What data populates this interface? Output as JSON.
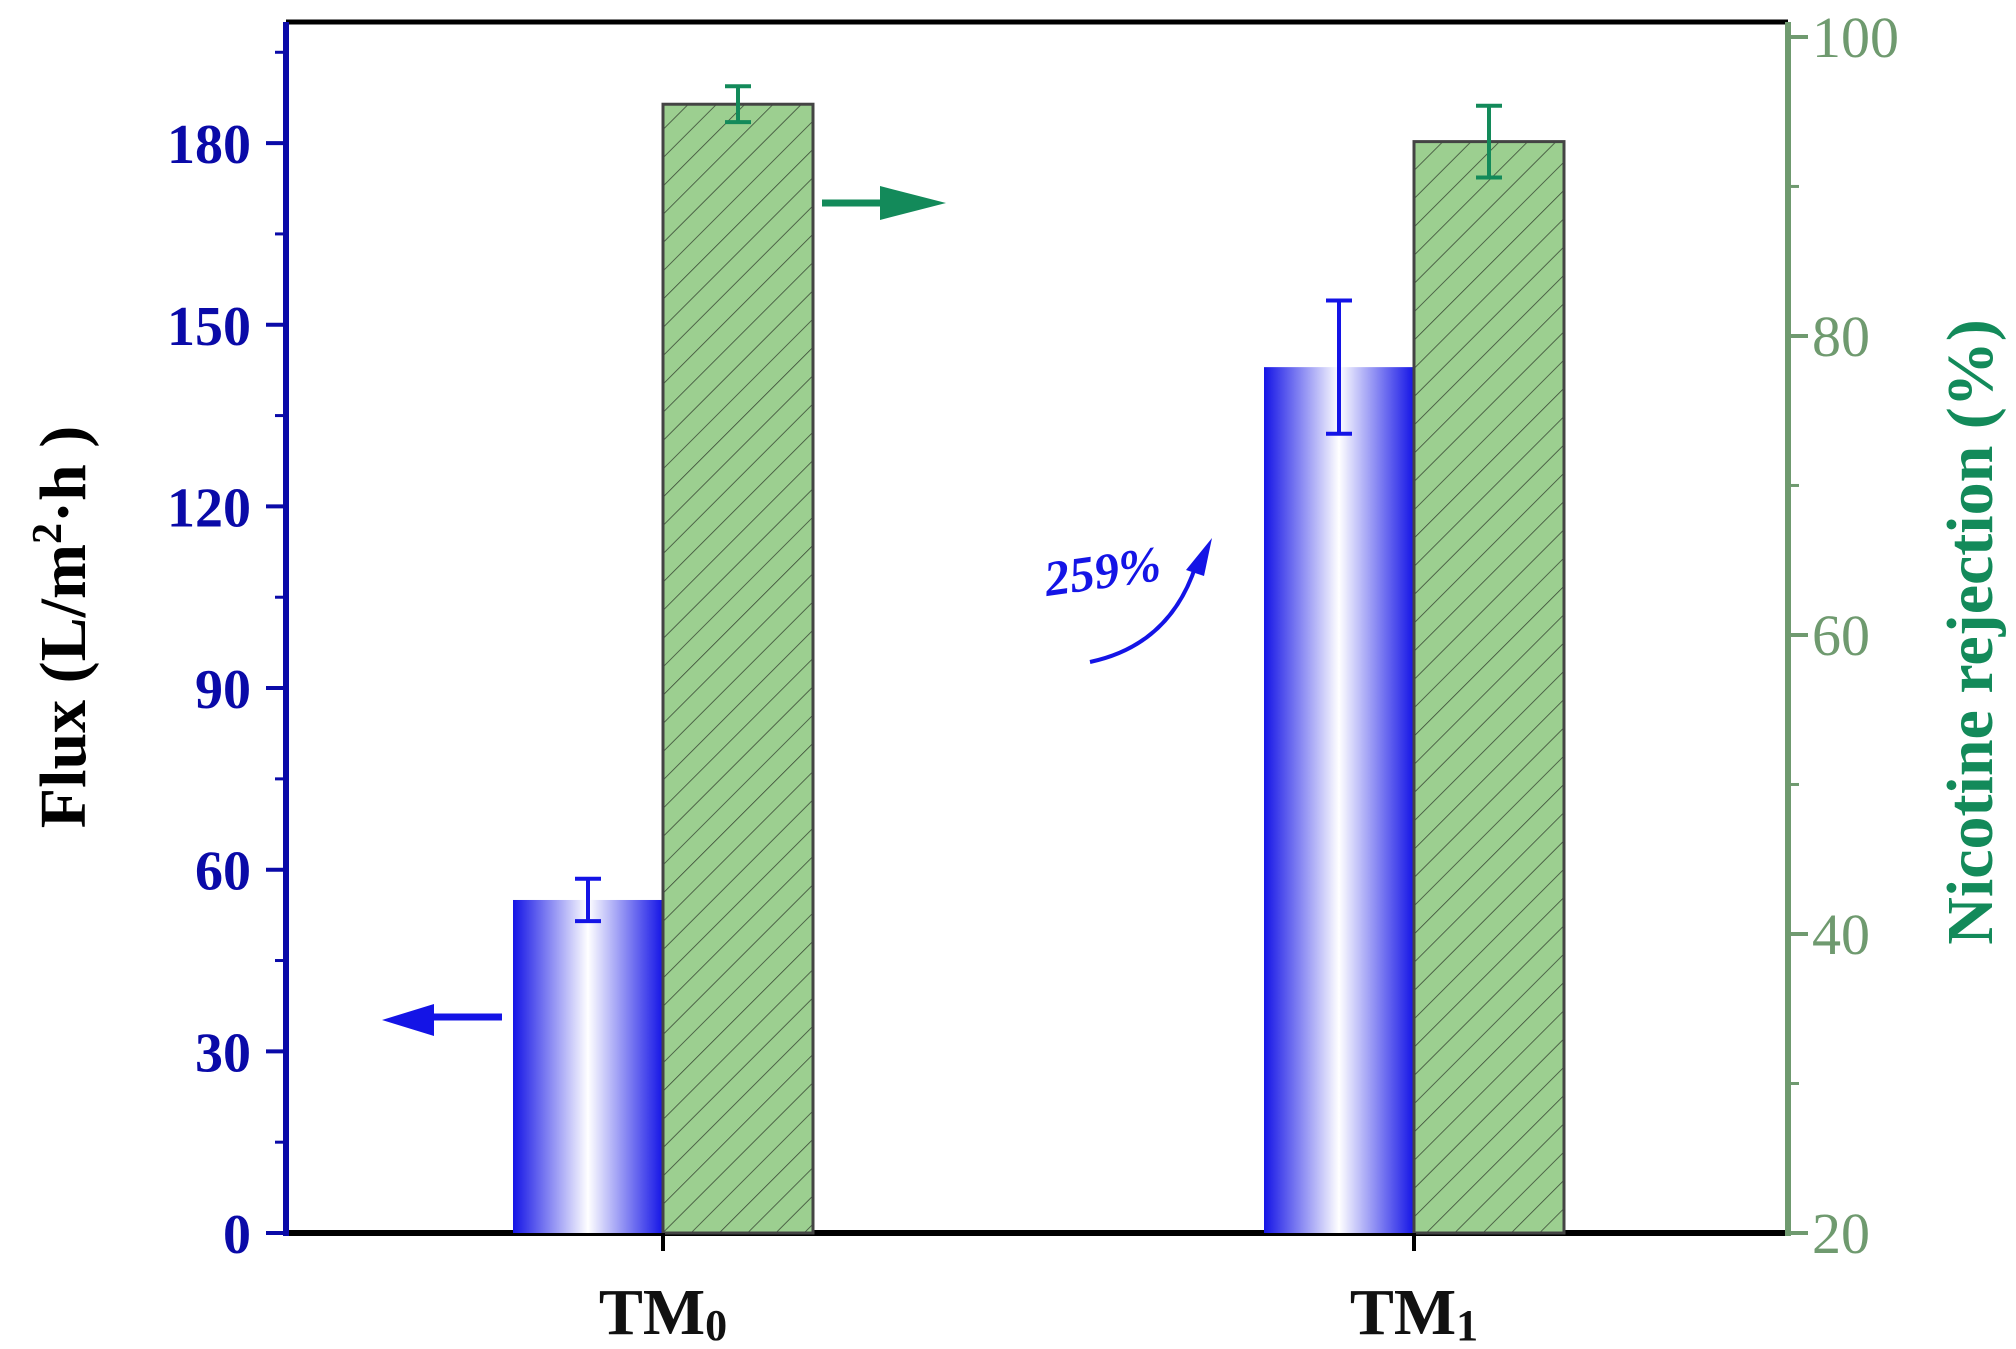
{
  "chart_data": {
    "type": "bar",
    "categories": [
      "TM",
      "TM"
    ],
    "category_subscripts": [
      "0",
      "1"
    ],
    "series": [
      {
        "name": "Flux",
        "axis": "left",
        "values": [
          55,
          143
        ],
        "errors": [
          3.5,
          11
        ],
        "color": "#1414e6"
      },
      {
        "name": "Nicotine rejection",
        "axis": "right",
        "values": [
          95.5,
          93
        ],
        "errors": [
          1.2,
          2.4
        ],
        "color": "#9ccf90"
      }
    ],
    "ylabel": "Flux (L/m",
    "ylabel_sup": "2",
    "ylabel_tail": "·h )",
    "ylim": [
      0,
      200
    ],
    "yticks": [
      0,
      30,
      60,
      90,
      120,
      150,
      180
    ],
    "y2label": "Nicotine rejection (%)",
    "y2lim": [
      20,
      101
    ],
    "y2ticks": [
      20,
      40,
      60,
      80,
      100
    ],
    "annotation": "259%",
    "colors": {
      "left_axis": "#0a0aa8",
      "right_axis": "#6f9a6f",
      "right_label": "#138a5a",
      "arrow_flux": "#1414e6",
      "arrow_rejection": "#138a5a",
      "annotation": "#1414e6"
    }
  }
}
